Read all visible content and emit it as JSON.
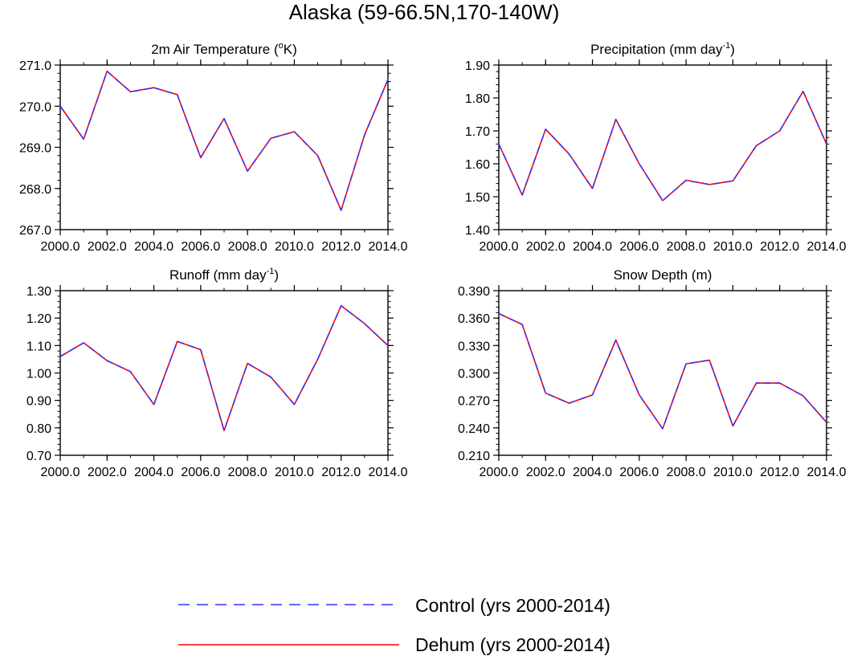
{
  "title": "Alaska (59-66.5N,170-140W)",
  "colors": {
    "control": "#3333ff",
    "dehum": "#ff0000",
    "axis": "#000000"
  },
  "legend": [
    {
      "label": "Control (yrs 2000-2014)",
      "style": "dashed",
      "color": "#3333ff"
    },
    {
      "label": "Dehum (yrs 2000-2014)",
      "style": "solid",
      "color": "#ff0000"
    }
  ],
  "chart_data": [
    {
      "type": "line",
      "title": "2m Air Temperature (",
      "title_sup": "o",
      "title_after": "K)",
      "x": [
        2000,
        2001,
        2002,
        2003,
        2004,
        2005,
        2006,
        2007,
        2008,
        2009,
        2010,
        2011,
        2012,
        2013,
        2014
      ],
      "xlim": [
        2000,
        2014
      ],
      "xticks": [
        2000,
        2002,
        2004,
        2006,
        2008,
        2010,
        2012,
        2014
      ],
      "xtick_labels": [
        "2000.0",
        "2002.0",
        "2004.0",
        "2006.0",
        "2008.0",
        "2010.0",
        "2012.0",
        "2014.0"
      ],
      "ylim": [
        267.0,
        271.0
      ],
      "yticks": [
        267.0,
        268.0,
        269.0,
        270.0,
        271.0
      ],
      "ytick_labels": [
        "267.0",
        "268.0",
        "269.0",
        "270.0",
        "271.0"
      ],
      "yminor": 0.2,
      "series": [
        {
          "name": "Control (yrs 2000-2014)",
          "values": [
            270.0,
            269.2,
            270.85,
            270.35,
            270.45,
            270.28,
            268.75,
            269.7,
            268.42,
            269.22,
            269.38,
            268.8,
            267.47,
            269.3,
            270.65
          ]
        },
        {
          "name": "Dehum (yrs 2000-2014)",
          "values": [
            270.0,
            269.2,
            270.85,
            270.35,
            270.45,
            270.28,
            268.75,
            269.7,
            268.42,
            269.22,
            269.38,
            268.8,
            267.47,
            269.3,
            270.65
          ]
        }
      ]
    },
    {
      "type": "line",
      "title": "Precipitation (mm day",
      "title_sup": "-1",
      "title_after": ")",
      "x": [
        2000,
        2001,
        2002,
        2003,
        2004,
        2005,
        2006,
        2007,
        2008,
        2009,
        2010,
        2011,
        2012,
        2013,
        2014
      ],
      "xlim": [
        2000,
        2014
      ],
      "xticks": [
        2000,
        2002,
        2004,
        2006,
        2008,
        2010,
        2012,
        2014
      ],
      "xtick_labels": [
        "2000.0",
        "2002.0",
        "2004.0",
        "2006.0",
        "2008.0",
        "2010.0",
        "2012.0",
        "2014.0"
      ],
      "ylim": [
        1.4,
        1.9
      ],
      "yticks": [
        1.4,
        1.5,
        1.6,
        1.7,
        1.8,
        1.9
      ],
      "ytick_labels": [
        "1.40",
        "1.50",
        "1.60",
        "1.70",
        "1.80",
        "1.90"
      ],
      "yminor": 0.02,
      "series": [
        {
          "name": "Control (yrs 2000-2014)",
          "values": [
            1.66,
            1.505,
            1.705,
            1.63,
            1.525,
            1.735,
            1.6,
            1.488,
            1.55,
            1.537,
            1.548,
            1.655,
            1.7,
            1.82,
            1.66
          ]
        },
        {
          "name": "Dehum (yrs 2000-2014)",
          "values": [
            1.66,
            1.505,
            1.705,
            1.63,
            1.525,
            1.735,
            1.6,
            1.488,
            1.55,
            1.537,
            1.548,
            1.655,
            1.7,
            1.82,
            1.66
          ]
        }
      ]
    },
    {
      "type": "line",
      "title": "Runoff (mm day",
      "title_sup": "-1",
      "title_after": ")",
      "x": [
        2000,
        2001,
        2002,
        2003,
        2004,
        2005,
        2006,
        2007,
        2008,
        2009,
        2010,
        2011,
        2012,
        2013,
        2014
      ],
      "xlim": [
        2000,
        2014
      ],
      "xticks": [
        2000,
        2002,
        2004,
        2006,
        2008,
        2010,
        2012,
        2014
      ],
      "xtick_labels": [
        "2000.0",
        "2002.0",
        "2004.0",
        "2006.0",
        "2008.0",
        "2010.0",
        "2012.0",
        "2014.0"
      ],
      "ylim": [
        0.7,
        1.3
      ],
      "yticks": [
        0.7,
        0.8,
        0.9,
        1.0,
        1.1,
        1.2,
        1.3
      ],
      "ytick_labels": [
        "0.70",
        "0.80",
        "0.90",
        "1.00",
        "1.10",
        "1.20",
        "1.30"
      ],
      "yminor": 0.02,
      "series": [
        {
          "name": "Control (yrs 2000-2014)",
          "values": [
            1.06,
            1.11,
            1.045,
            1.005,
            0.885,
            1.115,
            1.085,
            0.79,
            1.035,
            0.985,
            0.885,
            1.05,
            1.245,
            1.18,
            1.1
          ]
        },
        {
          "name": "Dehum (yrs 2000-2014)",
          "values": [
            1.06,
            1.11,
            1.045,
            1.005,
            0.885,
            1.115,
            1.085,
            0.79,
            1.035,
            0.985,
            0.885,
            1.05,
            1.245,
            1.18,
            1.1
          ]
        }
      ]
    },
    {
      "type": "line",
      "title": "Snow Depth (m)",
      "title_sup": "",
      "title_after": "",
      "x": [
        2000,
        2001,
        2002,
        2003,
        2004,
        2005,
        2006,
        2007,
        2008,
        2009,
        2010,
        2011,
        2012,
        2013,
        2014
      ],
      "xlim": [
        2000,
        2014
      ],
      "xticks": [
        2000,
        2002,
        2004,
        2006,
        2008,
        2010,
        2012,
        2014
      ],
      "xtick_labels": [
        "2000.0",
        "2002.0",
        "2004.0",
        "2006.0",
        "2008.0",
        "2010.0",
        "2012.0",
        "2014.0"
      ],
      "ylim": [
        0.21,
        0.39
      ],
      "yticks": [
        0.21,
        0.24,
        0.27,
        0.3,
        0.33,
        0.36,
        0.39
      ],
      "ytick_labels": [
        "0.210",
        "0.240",
        "0.270",
        "0.300",
        "0.330",
        "0.360",
        "0.390"
      ],
      "yminor": 0.006,
      "series": [
        {
          "name": "Control (yrs 2000-2014)",
          "values": [
            0.365,
            0.353,
            0.278,
            0.267,
            0.276,
            0.336,
            0.276,
            0.239,
            0.31,
            0.314,
            0.242,
            0.289,
            0.289,
            0.275,
            0.246
          ]
        },
        {
          "name": "Dehum (yrs 2000-2014)",
          "values": [
            0.365,
            0.353,
            0.278,
            0.267,
            0.276,
            0.336,
            0.276,
            0.239,
            0.31,
            0.314,
            0.242,
            0.289,
            0.289,
            0.275,
            0.246
          ]
        }
      ]
    }
  ]
}
